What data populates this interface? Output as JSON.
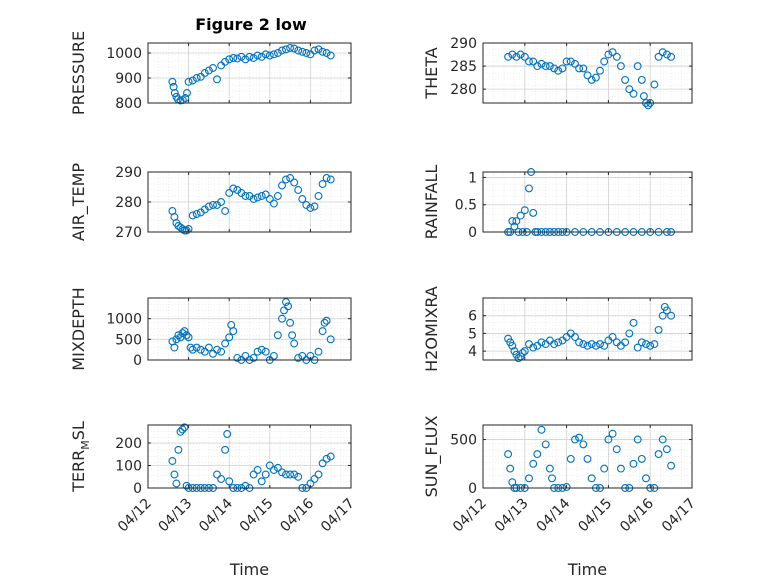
{
  "figure": {
    "title": "Figure 2 low",
    "marker_color": "#0072BD"
  },
  "chart_data": [
    {
      "type": "scatter",
      "ylabel": "PRESSURE",
      "xlabel": "",
      "xlim": [
        0,
        5
      ],
      "ylim": [
        800,
        1040
      ],
      "yticks": [
        800,
        900,
        1000
      ],
      "yticklabels": [
        "800",
        "900",
        "1000"
      ],
      "x": [
        0.6,
        0.63,
        0.66,
        0.7,
        0.74,
        0.8,
        0.86,
        0.92,
        0.96,
        1.0,
        1.1,
        1.2,
        1.3,
        1.4,
        1.5,
        1.6,
        1.7,
        1.8,
        1.9,
        2.0,
        2.1,
        2.2,
        2.3,
        2.4,
        2.5,
        2.6,
        2.7,
        2.8,
        2.9,
        3.0,
        3.1,
        3.2,
        3.3,
        3.4,
        3.5,
        3.6,
        3.7,
        3.8,
        3.9,
        4.0,
        4.1,
        4.2,
        4.3,
        4.4,
        4.5
      ],
      "y": [
        885,
        865,
        840,
        825,
        815,
        810,
        812,
        820,
        840,
        885,
        890,
        900,
        905,
        920,
        930,
        940,
        895,
        950,
        965,
        975,
        980,
        978,
        985,
        975,
        985,
        980,
        990,
        985,
        995,
        990,
        995,
        1000,
        1010,
        1015,
        1020,
        1018,
        1010,
        1005,
        1000,
        995,
        1010,
        1015,
        1005,
        1000,
        990
      ]
    },
    {
      "type": "scatter",
      "ylabel": "THETA",
      "xlabel": "",
      "xlim": [
        0,
        5
      ],
      "ylim": [
        277,
        290
      ],
      "yticks": [
        280,
        285,
        290
      ],
      "yticklabels": [
        "280",
        "285",
        "290"
      ],
      "x": [
        0.6,
        0.7,
        0.8,
        0.9,
        1.0,
        1.1,
        1.2,
        1.3,
        1.4,
        1.5,
        1.6,
        1.7,
        1.8,
        1.9,
        2.0,
        2.1,
        2.2,
        2.3,
        2.4,
        2.5,
        2.6,
        2.7,
        2.8,
        2.9,
        3.0,
        3.1,
        3.2,
        3.3,
        3.4,
        3.5,
        3.6,
        3.7,
        3.8,
        3.85,
        3.9,
        3.95,
        4.0,
        4.1,
        4.2,
        4.3,
        4.4,
        4.5
      ],
      "y": [
        287,
        287.5,
        287,
        287.5,
        287,
        286,
        286,
        285,
        285.5,
        285,
        285,
        284.5,
        284,
        284.5,
        286,
        286,
        285.5,
        284.5,
        284.5,
        283,
        282,
        282.5,
        284,
        286,
        287.5,
        288,
        287,
        285,
        282,
        280,
        279,
        285,
        282,
        278.5,
        277,
        276.5,
        277,
        281,
        287,
        288,
        287.5,
        287
      ]
    },
    {
      "type": "scatter",
      "ylabel": "AIR_TEMP",
      "xlabel": "",
      "xlim": [
        0,
        5
      ],
      "ylim": [
        270,
        290
      ],
      "yticks": [
        270,
        280,
        290
      ],
      "yticklabels": [
        "270",
        "280",
        "290"
      ],
      "x": [
        0.6,
        0.65,
        0.7,
        0.75,
        0.8,
        0.85,
        0.9,
        0.95,
        1.0,
        1.1,
        1.2,
        1.3,
        1.4,
        1.5,
        1.6,
        1.7,
        1.8,
        1.9,
        2.0,
        2.1,
        2.2,
        2.3,
        2.4,
        2.5,
        2.6,
        2.7,
        2.8,
        2.9,
        3.0,
        3.1,
        3.2,
        3.3,
        3.4,
        3.5,
        3.6,
        3.7,
        3.8,
        3.9,
        4.0,
        4.1,
        4.2,
        4.3,
        4.4,
        4.5
      ],
      "y": [
        277,
        275,
        273,
        272,
        271.5,
        271,
        270.5,
        270.5,
        271,
        275.5,
        276,
        276.5,
        277.5,
        278.5,
        279,
        279,
        280,
        277,
        283,
        284.5,
        284,
        283,
        282,
        282,
        281,
        281.5,
        282,
        282.5,
        281,
        279.5,
        282,
        285.5,
        287.5,
        288,
        286.5,
        284,
        281,
        279,
        278,
        278.5,
        282,
        286,
        288,
        287.5
      ]
    },
    {
      "type": "scatter",
      "ylabel": "RAINFALL",
      "xlabel": "",
      "xlim": [
        0,
        5
      ],
      "ylim": [
        0,
        1.1
      ],
      "yticks": [
        0,
        0.5,
        1
      ],
      "yticklabels": [
        "0",
        "0.5",
        "1"
      ],
      "x": [
        0.6,
        0.65,
        0.7,
        0.75,
        0.8,
        0.85,
        0.9,
        0.95,
        1.0,
        1.05,
        1.1,
        1.15,
        1.2,
        1.25,
        1.3,
        1.4,
        1.5,
        1.6,
        1.7,
        1.8,
        1.9,
        2.0,
        2.2,
        2.4,
        2.6,
        2.8,
        3.0,
        3.2,
        3.4,
        3.6,
        3.8,
        4.0,
        4.2,
        4.4,
        4.5
      ],
      "y": [
        0,
        0,
        0.2,
        0.1,
        0.2,
        0,
        0.3,
        0,
        0.4,
        0,
        0.8,
        1.1,
        0.35,
        0,
        0,
        0,
        0,
        0,
        0,
        0,
        0,
        0,
        0,
        0,
        0,
        0,
        0,
        0,
        0,
        0,
        0,
        0,
        0,
        0,
        0
      ]
    },
    {
      "type": "scatter",
      "ylabel": "MIXDEPTH",
      "xlabel": "",
      "xlim": [
        0,
        5
      ],
      "ylim": [
        0,
        1500
      ],
      "yticks": [
        0,
        500,
        1000
      ],
      "yticklabels": [
        "0",
        "500",
        "1000"
      ],
      "x": [
        0.6,
        0.65,
        0.7,
        0.75,
        0.8,
        0.85,
        0.9,
        0.95,
        1.0,
        1.05,
        1.1,
        1.2,
        1.3,
        1.4,
        1.5,
        1.6,
        1.7,
        1.8,
        1.9,
        2.0,
        2.05,
        2.1,
        2.2,
        2.3,
        2.4,
        2.5,
        2.6,
        2.7,
        2.8,
        2.9,
        3.0,
        3.1,
        3.2,
        3.3,
        3.35,
        3.4,
        3.45,
        3.5,
        3.55,
        3.6,
        3.7,
        3.8,
        3.9,
        4.0,
        4.1,
        4.2,
        4.3,
        4.35,
        4.4,
        4.5
      ],
      "y": [
        450,
        300,
        500,
        600,
        550,
        650,
        700,
        600,
        550,
        300,
        250,
        300,
        250,
        200,
        300,
        150,
        250,
        200,
        400,
        550,
        850,
        700,
        50,
        0,
        100,
        0,
        50,
        200,
        250,
        200,
        0,
        100,
        600,
        1000,
        1200,
        1400,
        1300,
        900,
        600,
        400,
        50,
        100,
        0,
        100,
        0,
        200,
        700,
        900,
        950,
        500
      ]
    },
    {
      "type": "scatter",
      "ylabel": "H2OMIXRA",
      "xlabel": "",
      "xlim": [
        0,
        5
      ],
      "ylim": [
        3.5,
        7
      ],
      "yticks": [
        4,
        5,
        6
      ],
      "yticklabels": [
        "4",
        "5",
        "6"
      ],
      "x": [
        0.6,
        0.65,
        0.7,
        0.75,
        0.8,
        0.85,
        0.9,
        0.95,
        1.0,
        1.1,
        1.2,
        1.3,
        1.4,
        1.5,
        1.6,
        1.7,
        1.8,
        1.9,
        2.0,
        2.1,
        2.2,
        2.3,
        2.4,
        2.5,
        2.6,
        2.7,
        2.8,
        2.9,
        3.0,
        3.1,
        3.2,
        3.3,
        3.4,
        3.5,
        3.6,
        3.7,
        3.8,
        3.9,
        4.0,
        4.1,
        4.2,
        4.3,
        4.35,
        4.4,
        4.5
      ],
      "y": [
        4.7,
        4.5,
        4.3,
        4,
        3.8,
        3.6,
        3.7,
        3.9,
        4,
        4.4,
        4.2,
        4.3,
        4.5,
        4.4,
        4.6,
        4.4,
        4.5,
        4.6,
        4.8,
        5,
        4.8,
        4.5,
        4.4,
        4.3,
        4.4,
        4.3,
        4.4,
        4.3,
        4.6,
        4.8,
        4.5,
        4.3,
        4.5,
        5,
        5.6,
        4.2,
        4.5,
        4.4,
        4.3,
        4.4,
        5.2,
        6,
        6.5,
        6.3,
        6
      ]
    },
    {
      "type": "scatter",
      "ylabel": "TERR_MSL",
      "xlabel": "Time",
      "xlim": [
        0,
        5
      ],
      "ylim": [
        0,
        280
      ],
      "yticks": [
        0,
        100,
        200
      ],
      "yticklabels": [
        "0",
        "100",
        "200"
      ],
      "xticklabels": [
        "04/12",
        "04/13",
        "04/14",
        "04/15",
        "04/16",
        "04/17"
      ],
      "x": [
        0.6,
        0.65,
        0.7,
        0.75,
        0.8,
        0.85,
        0.9,
        0.95,
        1.0,
        1.1,
        1.2,
        1.3,
        1.4,
        1.5,
        1.6,
        1.7,
        1.8,
        1.9,
        1.95,
        2.0,
        2.1,
        2.2,
        2.3,
        2.4,
        2.5,
        2.6,
        2.7,
        2.8,
        2.9,
        3.0,
        3.1,
        3.2,
        3.3,
        3.4,
        3.5,
        3.6,
        3.7,
        3.8,
        3.9,
        4.0,
        4.1,
        4.2,
        4.3,
        4.4,
        4.5
      ],
      "y": [
        120,
        60,
        20,
        170,
        250,
        260,
        270,
        10,
        0,
        0,
        0,
        0,
        0,
        0,
        0,
        60,
        40,
        170,
        240,
        30,
        0,
        0,
        0,
        10,
        0,
        60,
        80,
        30,
        60,
        100,
        80,
        90,
        70,
        60,
        60,
        60,
        50,
        0,
        0,
        20,
        40,
        60,
        110,
        130,
        140
      ]
    },
    {
      "type": "scatter",
      "ylabel": "SUN_FLUX",
      "xlabel": "Time",
      "xlim": [
        0,
        5
      ],
      "ylim": [
        0,
        650
      ],
      "yticks": [
        0,
        500
      ],
      "yticklabels": [
        "0",
        "500"
      ],
      "xticklabels": [
        "04/12",
        "04/13",
        "04/14",
        "04/15",
        "04/16",
        "04/17"
      ],
      "x": [
        0.6,
        0.65,
        0.7,
        0.75,
        0.8,
        0.9,
        1.0,
        1.1,
        1.2,
        1.3,
        1.4,
        1.5,
        1.6,
        1.65,
        1.7,
        1.8,
        1.9,
        2.0,
        2.1,
        2.2,
        2.3,
        2.4,
        2.5,
        2.6,
        2.7,
        2.8,
        2.9,
        3.0,
        3.1,
        3.2,
        3.3,
        3.4,
        3.5,
        3.6,
        3.7,
        3.8,
        3.9,
        4.0,
        4.1,
        4.2,
        4.3,
        4.4,
        4.5
      ],
      "y": [
        350,
        200,
        60,
        0,
        0,
        0,
        0,
        100,
        250,
        350,
        600,
        450,
        200,
        100,
        0,
        0,
        0,
        10,
        300,
        500,
        520,
        450,
        300,
        100,
        0,
        0,
        200,
        500,
        560,
        400,
        200,
        0,
        0,
        250,
        500,
        300,
        100,
        0,
        0,
        350,
        500,
        400,
        230
      ]
    }
  ]
}
